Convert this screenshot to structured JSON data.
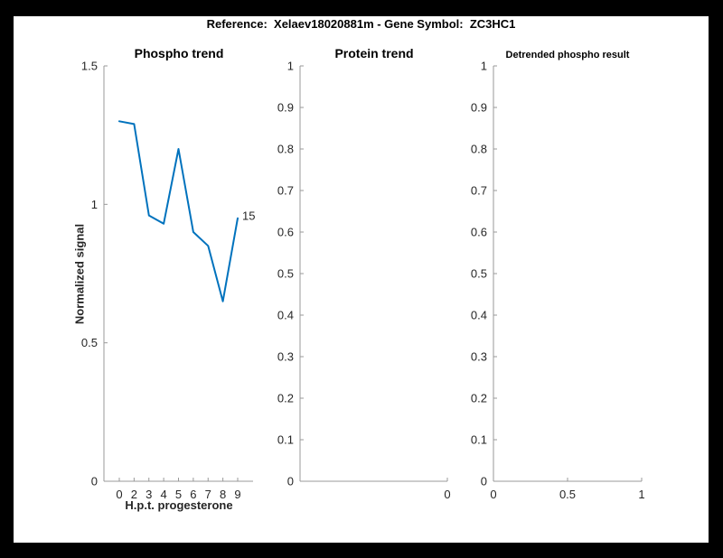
{
  "figure": {
    "title": "Reference:  Xelaev18020881m - Gene Symbol:  ZC3HC1",
    "frame_color": "#000000",
    "canvas_color": "#ffffff",
    "axis_color": "#999999",
    "tick_label_color": "#262626"
  },
  "chart_data": [
    {
      "id": "phospho-trend",
      "type": "line",
      "title": "Phospho trend",
      "xlabel": "H.p.t. progesterone",
      "ylabel": "Normalized signal",
      "categories": [
        "0",
        "2",
        "3",
        "4",
        "5",
        "6",
        "7",
        "8",
        "9"
      ],
      "values": [
        1.3,
        1.29,
        0.96,
        0.93,
        1.2,
        0.9,
        0.85,
        0.65,
        0.95
      ],
      "ylim": [
        0,
        1.5
      ],
      "yticks": [
        0,
        0.5,
        1,
        1.5
      ],
      "ytick_labels": [
        "0",
        "0.5",
        "1",
        "1.5"
      ],
      "line_color": "#0072bd",
      "annotation": {
        "text": "15",
        "at_last_point": true
      },
      "grid": false,
      "legend": null
    },
    {
      "id": "protein-trend",
      "type": "line",
      "title": "Protein trend",
      "xlabel": "",
      "ylabel": "",
      "categories": [],
      "values": [],
      "ylim": [
        0,
        1
      ],
      "yticks": [
        0,
        0.1,
        0.2,
        0.3,
        0.4,
        0.5,
        0.6,
        0.7,
        0.8,
        0.9,
        1
      ],
      "ytick_labels": [
        "0",
        "0.1",
        "0.2",
        "0.3",
        "0.4",
        "0.5",
        "0.6",
        "0.7",
        "0.8",
        "0.9",
        "1"
      ],
      "xticks": [
        {
          "label": "0",
          "frac": 1
        }
      ],
      "grid": false,
      "legend": null
    },
    {
      "id": "detrended-phospho-result",
      "type": "line",
      "title": "Detrended phospho result",
      "xlabel": "",
      "ylabel": "",
      "categories": [],
      "values": [],
      "ylim": [
        0,
        1
      ],
      "yticks": [
        0,
        0.1,
        0.2,
        0.3,
        0.4,
        0.5,
        0.6,
        0.7,
        0.8,
        0.9,
        1
      ],
      "ytick_labels": [
        "0",
        "0.1",
        "0.2",
        "0.3",
        "0.4",
        "0.5",
        "0.6",
        "0.7",
        "0.8",
        "0.9",
        "1"
      ],
      "xticks": [
        {
          "label": "0",
          "frac": 0
        },
        {
          "label": "0.5",
          "frac": 0.5
        },
        {
          "label": "1",
          "frac": 1
        }
      ],
      "grid": false,
      "legend": null
    }
  ]
}
